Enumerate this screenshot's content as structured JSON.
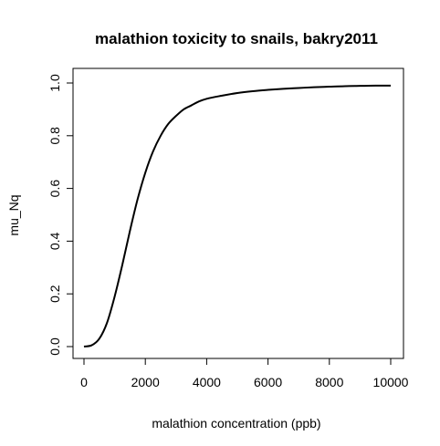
{
  "chart_data": {
    "type": "line",
    "title": "malathion toxicity to snails, bakry2011",
    "xlabel": "malathion concentration (ppb)",
    "ylabel": "mu_Nq",
    "xlim": [
      0,
      10000
    ],
    "ylim": [
      0,
      1
    ],
    "x_ticks": [
      "0",
      "2000",
      "4000",
      "6000",
      "8000",
      "10000"
    ],
    "y_ticks": [
      "0.0",
      "0.2",
      "0.4",
      "0.6",
      "0.8",
      "1.0"
    ],
    "grid": false,
    "series": [
      {
        "color": "#000000",
        "x": [
          0,
          250,
          500,
          750,
          1000,
          1250,
          1500,
          1750,
          2000,
          2250,
          2500,
          2750,
          3000,
          3250,
          3500,
          3750,
          4000,
          4500,
          5000,
          5500,
          6000,
          6500,
          7000,
          7500,
          8000,
          8500,
          9000,
          9500,
          10000
        ],
        "y": [
          0.0,
          0.005,
          0.03,
          0.09,
          0.19,
          0.31,
          0.44,
          0.56,
          0.66,
          0.74,
          0.8,
          0.845,
          0.875,
          0.9,
          0.915,
          0.93,
          0.94,
          0.952,
          0.962,
          0.969,
          0.974,
          0.978,
          0.981,
          0.984,
          0.986,
          0.988,
          0.989,
          0.99,
          0.99
        ]
      }
    ]
  }
}
